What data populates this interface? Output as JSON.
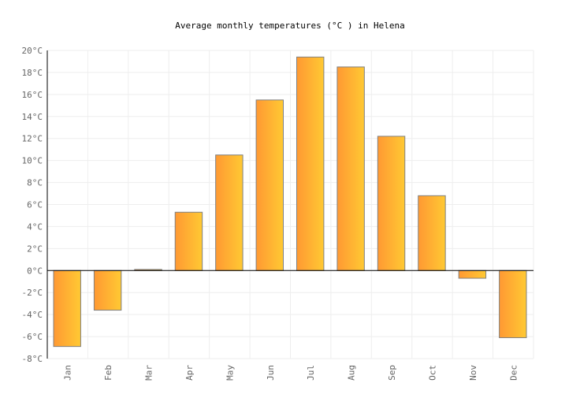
{
  "chart_data": {
    "type": "bar",
    "title": "Average monthly temperatures (°C ) in Helena",
    "categories": [
      "Jan",
      "Feb",
      "Mar",
      "Apr",
      "May",
      "Jun",
      "Jul",
      "Aug",
      "Sep",
      "Oct",
      "Nov",
      "Dec"
    ],
    "values": [
      -6.9,
      -3.6,
      0.1,
      5.3,
      10.5,
      15.5,
      19.4,
      18.5,
      12.2,
      6.8,
      -0.7,
      -6.1
    ],
    "ylim": [
      -8,
      20
    ],
    "ytick_step": 2,
    "ytick_suffix": "°C",
    "xlabel": "",
    "ylabel": "",
    "grid": true,
    "colors": {
      "bar_left": "#ff9933",
      "bar_right": "#ffc933",
      "bar_stroke": "#808080",
      "grid": "#eeeeee",
      "axis": "#000000"
    }
  }
}
